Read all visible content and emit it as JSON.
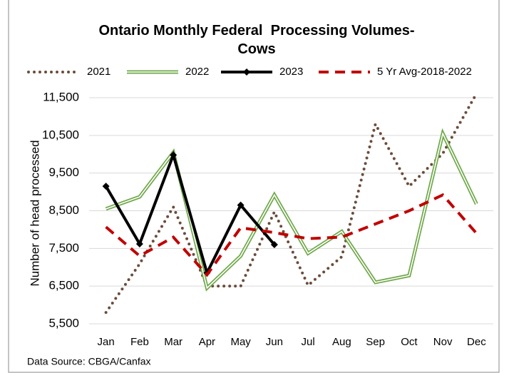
{
  "chart_data": {
    "type": "line",
    "title": "Ontario Monthly Federal  Processing Volumes- Cows",
    "y_label": "Number of head processed",
    "source": "Data Source: CBGA/Canfax",
    "categories": [
      "Jan",
      "Feb",
      "Mar",
      "Apr",
      "May",
      "Jun",
      "Jul",
      "Aug",
      "Sep",
      "Oct",
      "Nov",
      "Dec"
    ],
    "ylim": [
      5500,
      11900
    ],
    "yticks": [
      {
        "value": 5500,
        "label": "5,500"
      },
      {
        "value": 6500,
        "label": "6,500"
      },
      {
        "value": 7500,
        "label": "7,500"
      },
      {
        "value": 8500,
        "label": "8,500"
      },
      {
        "value": 9500,
        "label": "9,500"
      },
      {
        "value": 10500,
        "label": "10,500"
      },
      {
        "value": 11500,
        "label": "11,500"
      }
    ],
    "grid": true,
    "legend": "top",
    "series": [
      {
        "name": "2021",
        "color": "#6b4c3b",
        "style": "dotted",
        "values": [
          5800,
          7090,
          8600,
          6500,
          6500,
          8470,
          6520,
          7280,
          10800,
          9150,
          10020,
          11610
        ]
      },
      {
        "name": "2022",
        "color": "#70a84a",
        "style": "double",
        "values": [
          8550,
          8870,
          10050,
          6450,
          7300,
          8920,
          7370,
          7950,
          6600,
          6780,
          10550,
          8680
        ]
      },
      {
        "name": "2023",
        "color": "#000000",
        "style": "solid",
        "marker": "diamond",
        "values": [
          9150,
          7620,
          9980,
          6850,
          8650,
          7600,
          null,
          null,
          null,
          null,
          null,
          null
        ]
      },
      {
        "name": "5 Yr Avg-2018-2022",
        "color": "#c00000",
        "style": "dashed",
        "values": [
          8070,
          7300,
          7800,
          6800,
          8050,
          7920,
          7760,
          7800,
          8150,
          8500,
          8920,
          7900
        ]
      }
    ]
  }
}
